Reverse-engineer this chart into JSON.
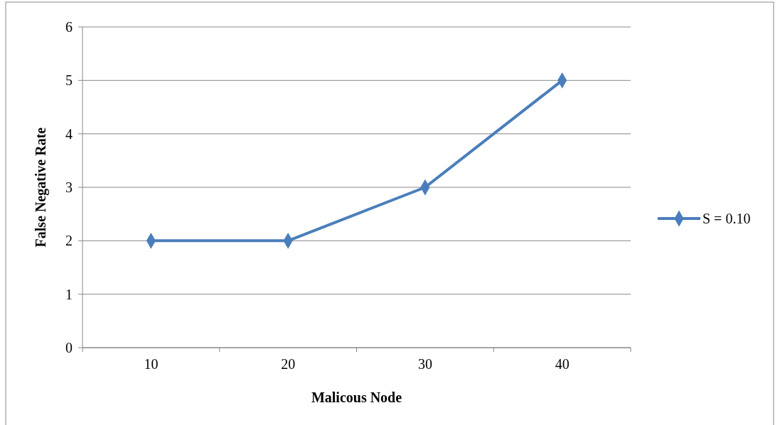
{
  "chart_data": {
    "type": "line",
    "xlabel": "Malicous Node",
    "ylabel": "False Negative Rate",
    "categories": [
      "10",
      "20",
      "30",
      "40"
    ],
    "series": [
      {
        "name": "S = 0.10",
        "color": "#4a7ebb",
        "values": [
          2,
          2,
          3,
          5
        ]
      }
    ],
    "ylim": [
      0,
      6
    ],
    "yticks": [
      0,
      1,
      2,
      3,
      4,
      5,
      6
    ],
    "grid": "y",
    "legend": "right",
    "marker": "diamond",
    "line_style": "solid"
  }
}
